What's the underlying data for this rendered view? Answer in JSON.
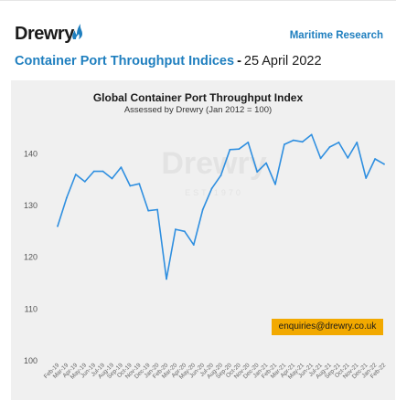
{
  "header": {
    "logo_text": "Drewry",
    "research_link": "Maritime Research",
    "headline_title": "Container Port Throughput Indices",
    "headline_sep": "-",
    "headline_date": "25 April 2022"
  },
  "watermark": {
    "name": "Drewry",
    "est": "EST 1970"
  },
  "badge": {
    "email": "enquiries@drewry.co.uk"
  },
  "colors": {
    "brand_blue": "#1f7fbf",
    "line": "#2f8fe0",
    "badge": "#f2a900",
    "chart_bg": "#f0f0f0"
  },
  "chart_data": {
    "type": "line",
    "title": "Global Container Port Throughput Index",
    "subtitle": "Assessed by Drewry  (Jan 2012 = 100)",
    "xlabel": "",
    "ylabel": "",
    "ylim": [
      100,
      145
    ],
    "yticks": [
      100,
      110,
      120,
      130,
      140
    ],
    "grid": false,
    "categories": [
      "Feb-19",
      "Mar-19",
      "Apr-19",
      "May-19",
      "Jun-19",
      "Jul-19",
      "Aug-19",
      "Sep-19",
      "Oct-19",
      "Nov-19",
      "Dec-19",
      "Jan-20",
      "Feb-20",
      "Mar-20",
      "Apr-20",
      "May-20",
      "Jun-20",
      "Jul-20",
      "Aug-20",
      "Sep-20",
      "Oct-20",
      "Nov-20",
      "Dec-20",
      "Jan-21",
      "Feb-21",
      "Mar-21",
      "Apr-21",
      "May-21",
      "Jun-21",
      "Jul-21",
      "Aug-21",
      "Sep-21",
      "Oct-21",
      "Nov-21",
      "Dec-21",
      "Jan-22",
      "Feb-22"
    ],
    "series": [
      {
        "values": [
          126.0,
          131.5,
          136.0,
          134.6,
          136.6,
          136.6,
          135.2,
          137.4,
          133.8,
          134.2,
          129.0,
          129.2,
          115.8,
          125.4,
          125.0,
          122.4,
          129.2,
          133.3,
          135.8,
          140.8,
          140.9,
          142.2,
          136.5,
          138.2,
          134.1,
          141.8,
          142.6,
          142.3,
          143.7,
          139.1,
          141.3,
          142.2,
          139.2,
          142.2,
          135.3,
          139.0,
          138.0
        ]
      }
    ]
  }
}
